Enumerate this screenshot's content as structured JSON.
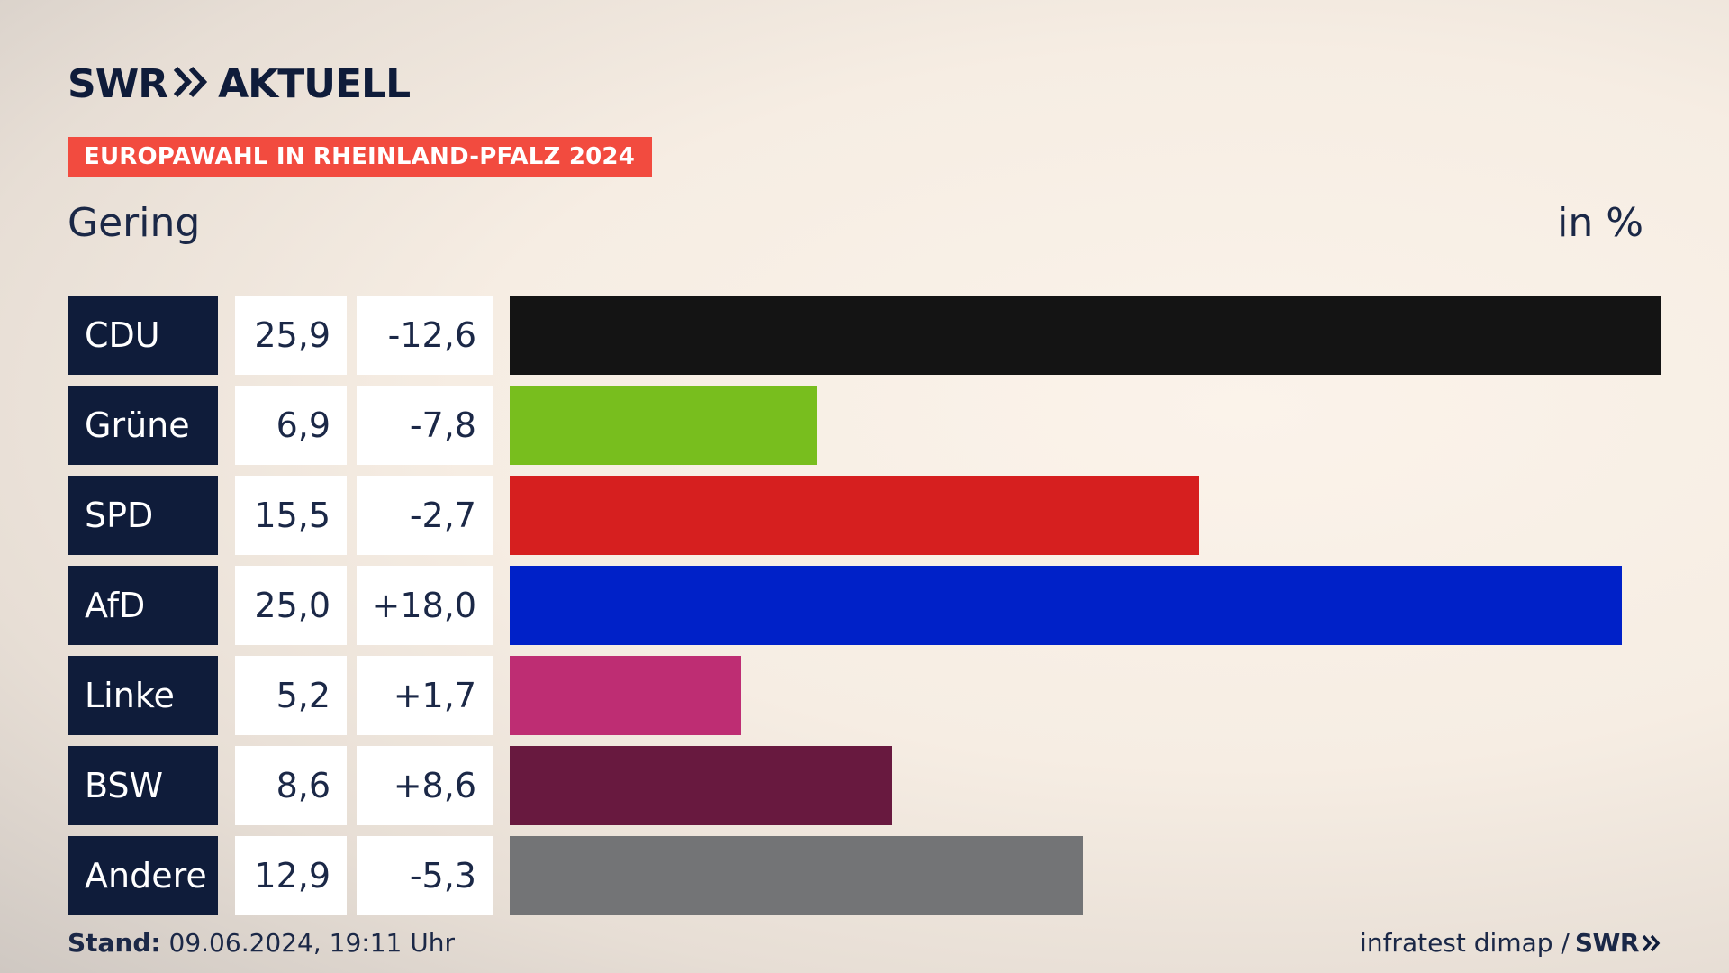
{
  "header": {
    "logo_left": "SWR",
    "logo_right": "AKTUELL",
    "tag": "EUROPAWAHL IN RHEINLAND-PFALZ 2024",
    "region": "Gering",
    "unit": "in %"
  },
  "footer": {
    "stand_label": "Stand:",
    "stand_value": "09.06.2024, 19:11 Uhr",
    "source": "infratest dimap /",
    "brand": "SWR"
  },
  "colors": {
    "brand_navy": "#0f1c3a",
    "tag_red": "#f24b3f"
  },
  "icons": [
    "double-chevron-icon"
  ],
  "chart_data": {
    "type": "bar",
    "orientation": "horizontal",
    "title": "",
    "xlabel": "",
    "ylabel": "",
    "xlim": [
      0,
      25.9
    ],
    "grid": false,
    "legend": "none",
    "categories": [
      "CDU",
      "Grüne",
      "SPD",
      "AfD",
      "Linke",
      "BSW",
      "Andere"
    ],
    "values": [
      25.9,
      6.9,
      15.5,
      25.0,
      5.2,
      8.6,
      12.9
    ],
    "value_labels": [
      "25,9",
      "6,9",
      "15,5",
      "25,0",
      "5,2",
      "8,6",
      "12,9"
    ],
    "diff_labels": [
      "-12,6",
      "-7,8",
      "-2,7",
      "+18,0",
      "+1,7",
      "+8,6",
      "-5,3"
    ],
    "diffs": [
      -12.6,
      -7.8,
      -2.7,
      18.0,
      1.7,
      8.6,
      -5.3
    ],
    "bar_colors": [
      "#141414",
      "#78be1e",
      "#d61f1f",
      "#0021c8",
      "#be2d73",
      "#68193f",
      "#737476"
    ]
  }
}
